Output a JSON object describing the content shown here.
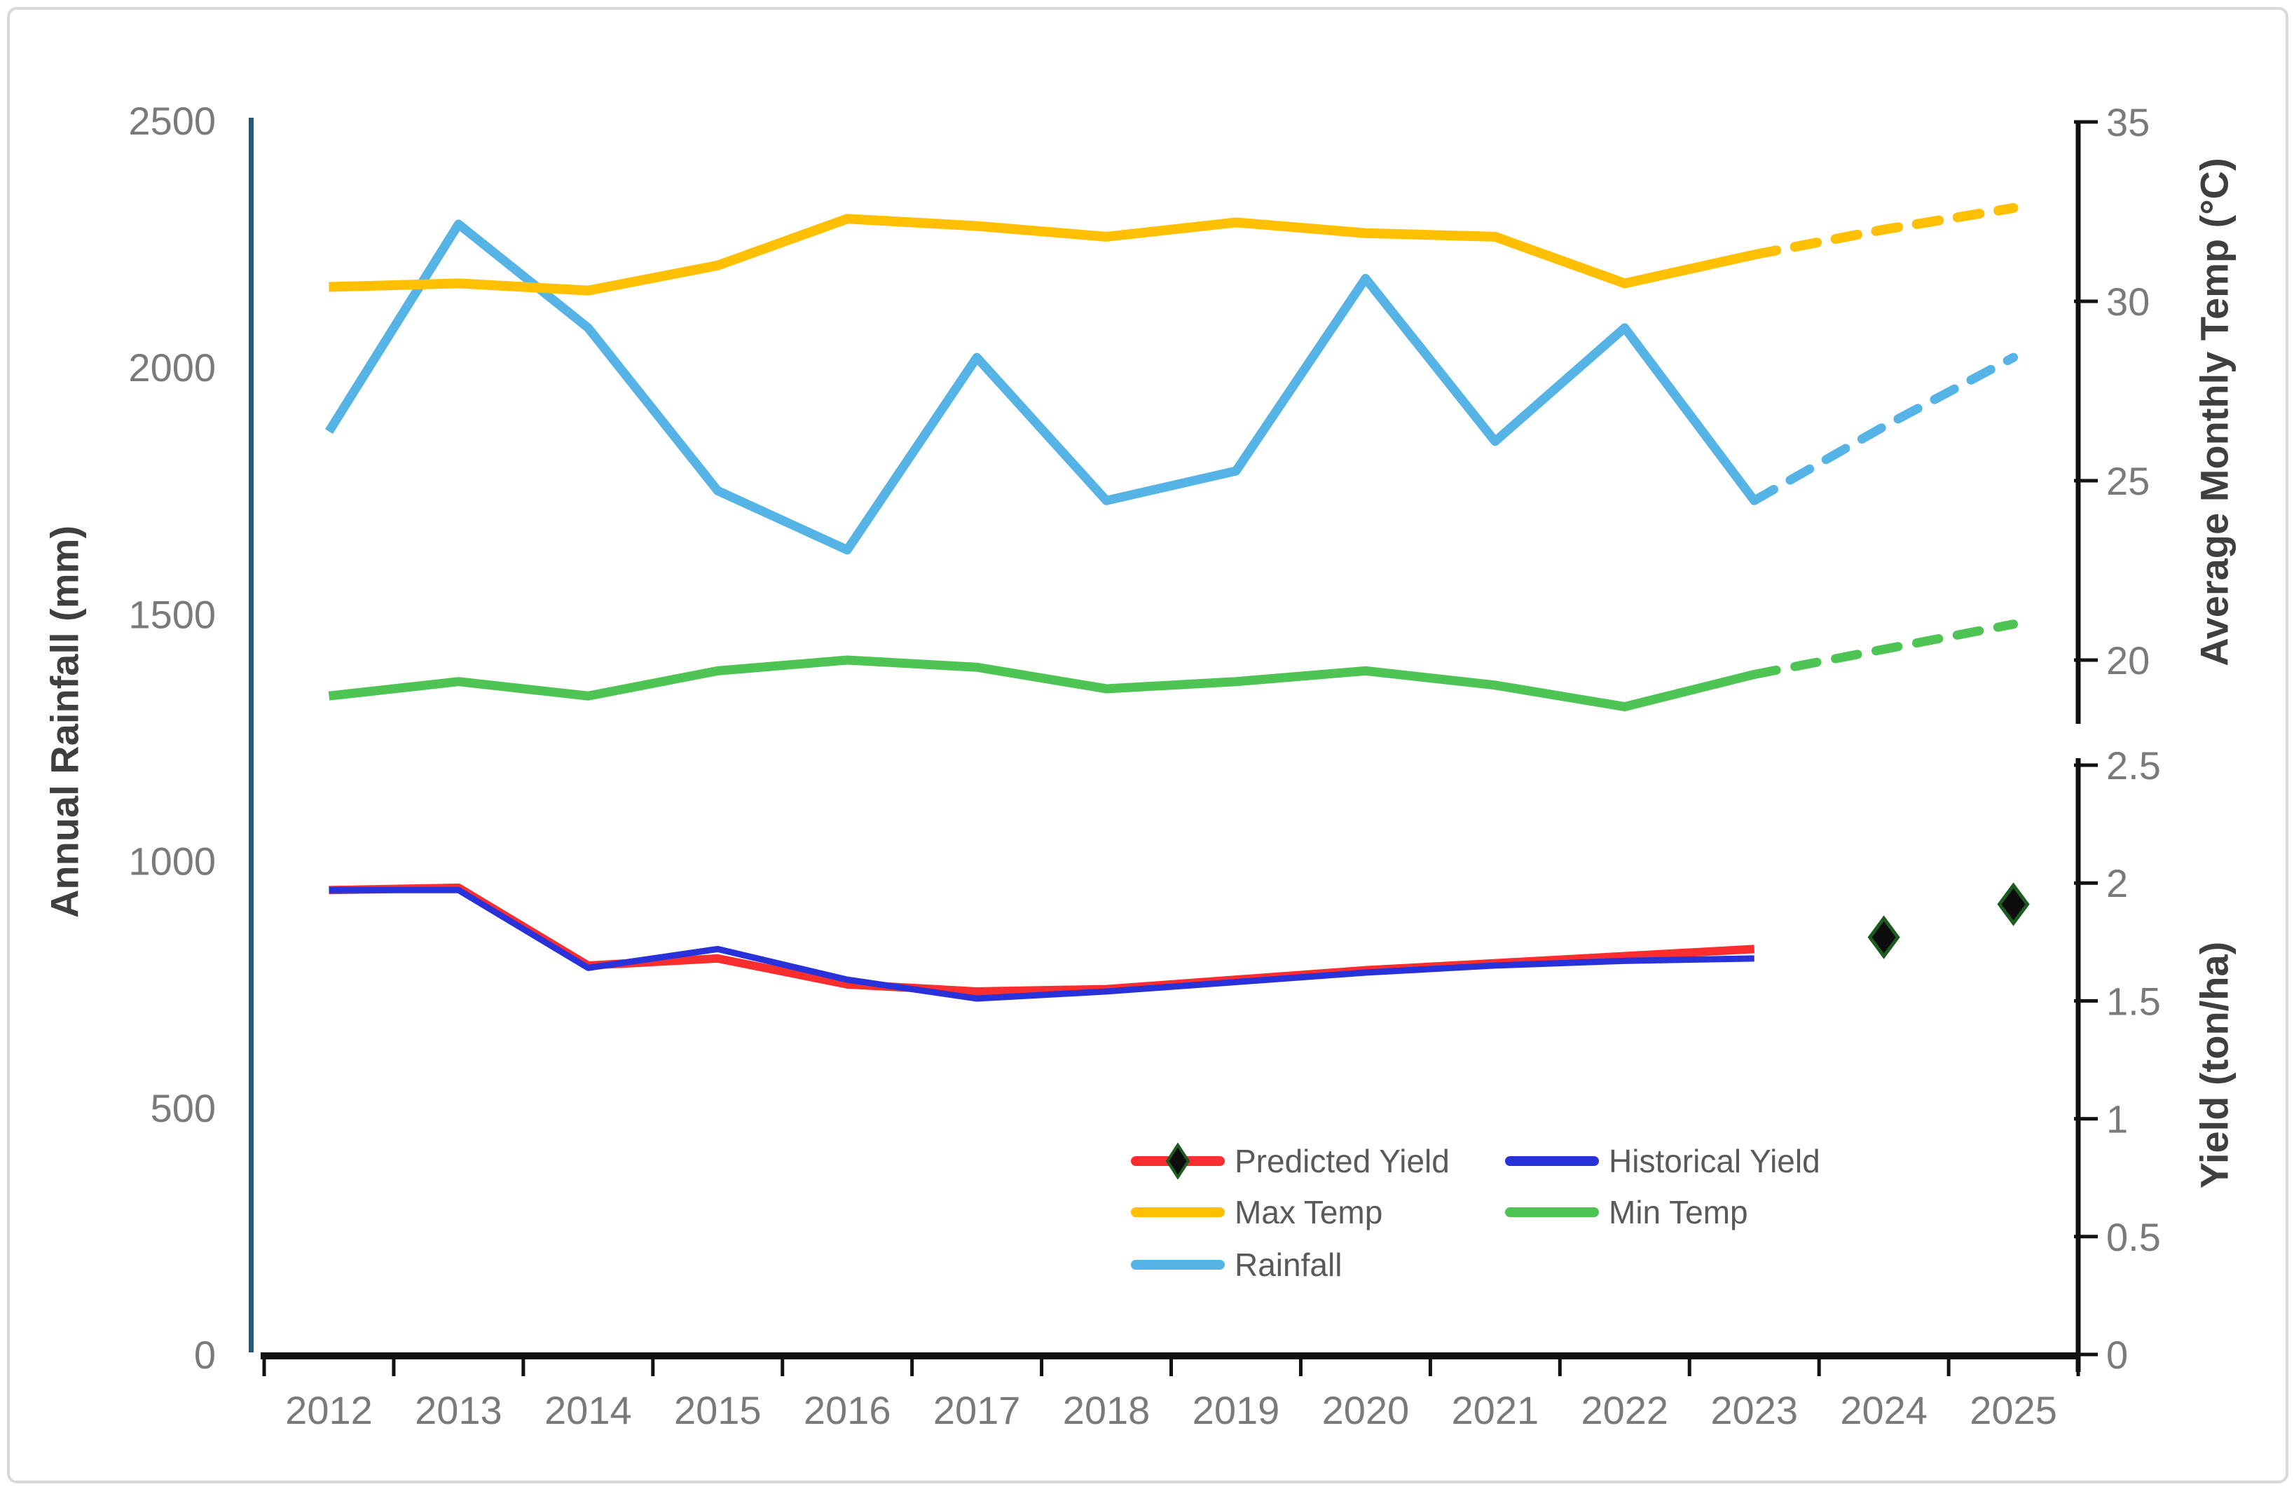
{
  "page": {
    "background": "#ffffff",
    "frame_border_color": "#d9d9d9"
  },
  "chart_data": {
    "type": "line",
    "x": [
      "2012",
      "2013",
      "2014",
      "2015",
      "2016",
      "2017",
      "2018",
      "2019",
      "2020",
      "2021",
      "2022",
      "2023",
      "2024",
      "2025"
    ],
    "axes": {
      "left": {
        "title": "Annual Rainfall (mm)",
        "ticks": [
          "0",
          "500",
          "1000",
          "1500",
          "2000",
          "2500"
        ],
        "tick_values": [
          0,
          500,
          1000,
          1500,
          2000,
          2500
        ],
        "range": [
          0,
          2500
        ],
        "axis_color": "#1f5b7d",
        "label_color": "#7a7a7a"
      },
      "right_temp": {
        "title": "Average Monthly Temp (°C)",
        "ticks": [
          "20",
          "25",
          "30",
          "35"
        ],
        "tick_values": [
          20,
          25,
          30,
          35
        ],
        "range": [
          18.2,
          35
        ],
        "axis_color": "#111111",
        "label_color": "#7a7a7a"
      },
      "right_yield": {
        "title": "Yield (ton/ha)",
        "ticks": [
          "0",
          "0.5",
          "1",
          "1.5",
          "2",
          "2.5"
        ],
        "tick_values": [
          0,
          0.5,
          1,
          1.5,
          2,
          2.5
        ],
        "range": [
          0,
          2.5
        ],
        "axis_color": "#111111",
        "label_color": "#7a7a7a"
      },
      "bottom": {
        "axis_color": "#111111",
        "label_color": "#7a7a7a"
      }
    },
    "series": [
      {
        "id": "rainfall",
        "name": "Rainfall",
        "axis": "rainfall",
        "color": "#55b3e6",
        "width": 13,
        "solid_to_index": 11,
        "values": [
          1870,
          2290,
          2080,
          1750,
          1630,
          2020,
          1730,
          1790,
          2180,
          1850,
          2080,
          1730,
          1880,
          2020
        ]
      },
      {
        "id": "min-temp",
        "name": "Min Temp",
        "axis": "temp",
        "color": "#4ec455",
        "width": 13,
        "solid_to_index": 11,
        "values": [
          19.0,
          19.4,
          19.0,
          19.7,
          20.0,
          19.8,
          19.2,
          19.4,
          19.7,
          19.3,
          18.7,
          19.6,
          20.3,
          21.0
        ]
      },
      {
        "id": "max-temp",
        "name": "Max Temp",
        "axis": "temp",
        "color": "#ffc003",
        "width": 14,
        "solid_to_index": 11,
        "values": [
          30.4,
          30.5,
          30.3,
          31.0,
          32.3,
          32.1,
          31.8,
          32.2,
          31.9,
          31.8,
          30.5,
          31.3,
          32.0,
          32.6
        ]
      },
      {
        "id": "predicted-yield",
        "name": "Predicted Yield",
        "axis": "yield",
        "color": "#fa2e2e",
        "width": 12,
        "values": [
          1.97,
          1.98,
          1.65,
          1.68,
          1.57,
          1.54,
          1.55,
          1.59,
          1.63,
          1.66,
          1.69,
          1.72,
          null,
          null
        ],
        "markers": [
          {
            "x": "2024",
            "value": 1.77
          },
          {
            "x": "2025",
            "value": 1.91
          }
        ],
        "marker_fill": "#0d0d0d",
        "marker_stroke": "#1d5c20"
      },
      {
        "id": "historical-yield",
        "name": "Historical Yield",
        "axis": "yield",
        "color": "#2832d8",
        "width": 9,
        "values": [
          1.97,
          1.97,
          1.64,
          1.72,
          1.59,
          1.51,
          1.54,
          1.58,
          1.62,
          1.65,
          1.67,
          1.68,
          null,
          null
        ]
      }
    ],
    "legend": {
      "text_color": "#595959",
      "items": [
        {
          "label": "Predicted Yield",
          "marker": "line-diamond",
          "color": "#fa2e2e",
          "diamond_fill": "#0d0d0d",
          "diamond_stroke": "#1d5c20"
        },
        {
          "label": "Historical Yield",
          "marker": "line",
          "color": "#2832d8"
        },
        {
          "label": "Max Temp",
          "marker": "line",
          "color": "#ffc003"
        },
        {
          "label": "Min Temp",
          "marker": "line",
          "color": "#4ec455"
        },
        {
          "label": "Rainfall",
          "marker": "line",
          "color": "#55b3e6"
        }
      ]
    }
  }
}
